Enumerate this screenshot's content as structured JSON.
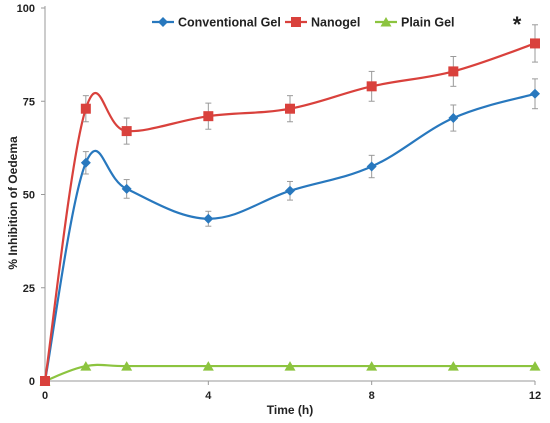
{
  "chart_data": {
    "type": "line",
    "title": "",
    "xlabel": "Time (h)",
    "ylabel": "% Inhibition of Oedema",
    "xlim": [
      0,
      12
    ],
    "ylim": [
      0,
      100
    ],
    "x_ticks": [
      "0",
      "4",
      "8",
      "12"
    ],
    "y_ticks": [
      "0",
      "25",
      "50",
      "75",
      "100"
    ],
    "legend_position": "top",
    "grid": false,
    "annotation": "*",
    "series": [
      {
        "name": "Conventional Gel",
        "color": "#2878be",
        "marker": "diamond",
        "x": [
          0,
          1,
          2,
          4,
          6,
          8,
          10,
          12
        ],
        "y": [
          0,
          58.5,
          51.5,
          43.5,
          51,
          57.5,
          70.5,
          77
        ],
        "error": [
          0,
          3,
          2.5,
          2,
          2.5,
          3,
          3.5,
          4
        ]
      },
      {
        "name": "Nanogel",
        "color": "#d9413c",
        "marker": "square",
        "x": [
          0,
          1,
          2,
          4,
          6,
          8,
          10,
          12
        ],
        "y": [
          0,
          73,
          67,
          71,
          73,
          79,
          83,
          90.5
        ],
        "error": [
          0,
          3.5,
          3.5,
          3.5,
          3.5,
          4,
          4,
          5
        ]
      },
      {
        "name": "Plain Gel",
        "color": "#8cc43f",
        "marker": "triangle",
        "x": [
          0,
          1,
          2,
          4,
          6,
          8,
          10,
          12
        ],
        "y": [
          0,
          4,
          4,
          4,
          4,
          4,
          4,
          4
        ],
        "error": [
          0,
          0,
          0,
          0,
          0,
          0,
          0,
          0
        ]
      }
    ]
  }
}
